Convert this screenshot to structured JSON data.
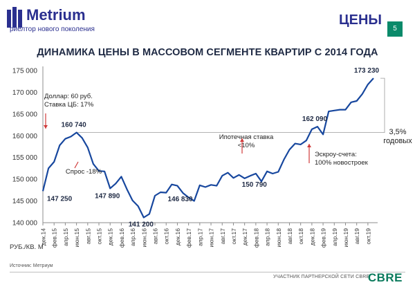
{
  "header": {
    "logo_text": "Metrium",
    "logo_subtitle": "риелтор нового поколения",
    "section_title": "ЦЕНЫ",
    "page_number": "5",
    "brand_color": "#2a2f8f",
    "accent_color": "#0a8a6a"
  },
  "side_note": {
    "value": "3,5%",
    "label": "годовых"
  },
  "unit_label": "РУБ./КВ. М",
  "source": "Источник: Метриум",
  "footer": {
    "partner_text": "УЧАСТНИК ПАРТНЕРСКОЙ СЕТИ CBRE",
    "cbre_logo": "CBRE"
  },
  "chart_data": {
    "type": "line",
    "title": "ДИНАМИКА ЦЕНЫ В МАССОВОМ СЕГМЕНТЕ КВАРТИР С 2014 ГОДА",
    "xlabel": "",
    "ylabel": "",
    "ylim": [
      140000,
      175000
    ],
    "yticks": [
      140000,
      145000,
      150000,
      155000,
      160000,
      165000,
      170000,
      175000
    ],
    "ytick_labels": [
      "140 000",
      "145 000",
      "150 000",
      "155 000",
      "160 000",
      "165 000",
      "170 000",
      "175 000"
    ],
    "x_tick_labels": [
      "дек.14",
      "фев.15",
      "апр.15",
      "июн.15",
      "авг.15",
      "окт.15",
      "дек.15",
      "фев.16",
      "апр.16",
      "июн.16",
      "авг.16",
      "окт.16",
      "дек.16",
      "фев.17",
      "апр.17",
      "июн.17",
      "авг.17",
      "окт.17",
      "дек.17",
      "фев.18",
      "апр.18",
      "июн.18",
      "авг.18",
      "окт.18",
      "дек.18",
      "фев.19",
      "апр.19",
      "июн.19",
      "авг.19",
      "окт.19"
    ],
    "grid": false,
    "line_color": "#17479e",
    "reference_line": 160740,
    "series": [
      {
        "name": "",
        "values": [
          147250,
          152500,
          154000,
          157800,
          159300,
          159800,
          160740,
          159500,
          157300,
          153500,
          151900,
          151800,
          147890,
          149000,
          150600,
          147700,
          145100,
          143800,
          141200,
          142000,
          146200,
          147000,
          146900,
          148800,
          148500,
          146830,
          145800,
          145000,
          148600,
          148200,
          148700,
          148500,
          150800,
          151500,
          150300,
          151000,
          150200,
          150790,
          151300,
          149500,
          151800,
          151300,
          151700,
          154500,
          156800,
          158200,
          158000,
          158900,
          161500,
          162090,
          160300,
          165600,
          165800,
          166000,
          166000,
          167700,
          168000,
          169600,
          171800,
          173230
        ]
      }
    ],
    "point_labels": [
      {
        "index": 0,
        "text": "147 250"
      },
      {
        "index": 6,
        "text": "160 740"
      },
      {
        "index": 12,
        "text": "147 890"
      },
      {
        "index": 18,
        "text": "141 200"
      },
      {
        "index": 25,
        "text": "146 830"
      },
      {
        "index": 37,
        "text": "150 790"
      },
      {
        "index": 49,
        "text": "162 090"
      },
      {
        "index": 59,
        "text": "173 230"
      }
    ],
    "annotations": [
      {
        "lines": [
          "Доллар: 60 руб.",
          "Ставка ЦБ: 17%"
        ]
      },
      {
        "lines": [
          "Спрос -18%"
        ]
      },
      {
        "lines": [
          "Ипотечная  ставка",
          "<10%"
        ]
      },
      {
        "lines": [
          "Эскроу-счета:",
          "100% новостроек"
        ]
      }
    ]
  }
}
